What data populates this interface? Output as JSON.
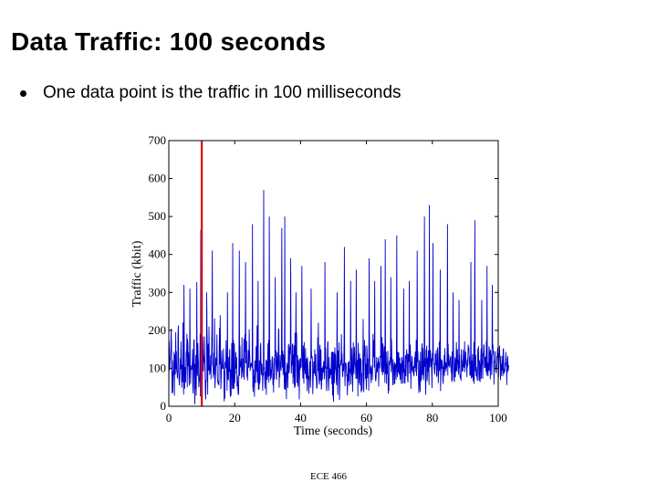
{
  "slide": {
    "title": "Data Traffic: 100 seconds",
    "bullet": "One data point is the traffic in 100 milliseconds",
    "footer": "ECE 466"
  },
  "chart_data": {
    "type": "line",
    "xlabel": "Time (seconds)",
    "ylabel": "Traffic (kbit)",
    "xlim": [
      0,
      100
    ],
    "ylim": [
      0,
      700
    ],
    "xticks": [
      0,
      20,
      40,
      60,
      80,
      100
    ],
    "yticks": [
      0,
      100,
      200,
      300,
      400,
      500,
      600,
      700
    ],
    "grid": false,
    "series": [
      {
        "color": "#0000cc",
        "x_start": 0,
        "x_step": 0.1,
        "values": [
          32,
          171,
          134,
          95,
          123,
          121,
          152,
          204,
          171,
          107,
          34,
          121,
          36,
          74,
          89,
          94,
          144,
          28,
          137,
          97,
          84,
          195,
          98,
          145,
          92,
          92,
          73,
          87,
          193,
          213,
          108,
          70,
          55,
          73,
          102,
          126,
          98,
          171,
          128,
          49,
          109,
          66,
          64,
          221,
          81,
          31,
          111,
          168,
          46,
          92,
          103,
          63,
          103,
          144,
          141,
          191,
          50,
          177,
          160,
          105,
          142,
          92,
          54,
          116,
          135,
          110,
          59,
          96,
          100,
          108,
          97,
          113,
          151,
          51,
          34,
          110,
          174,
          176,
          58,
          5,
          111,
          45,
          135,
          28,
          85,
          327,
          101,
          80,
          167,
          134,
          112,
          50,
          63,
          69,
          88,
          190,
          26,
          87,
          27,
          66,
          153,
          115,
          69,
          184,
          139,
          92,
          131,
          116,
          184,
          129,
          93,
          33,
          18,
          69,
          65,
          73,
          202,
          155,
          31,
          148,
          165,
          94,
          210,
          114,
          83,
          92,
          104,
          134,
          71,
          130,
          157,
          218,
          157,
          107,
          141,
          75,
          104,
          83,
          137,
          231,
          48,
          65,
          87,
          128,
          108,
          109,
          189,
          109,
          67,
          64,
          58,
          67,
          55,
          145,
          207,
          110,
          60,
          126,
          45,
          69,
          109,
          147,
          112,
          99,
          99,
          107,
          152,
          91,
          13,
          93,
          20,
          117,
          100,
          105,
          174,
          118,
          88,
          41,
          110,
          81,
          73,
          68,
          130,
          91,
          125,
          151,
          44,
          25,
          97,
          28,
          93,
          167,
          104,
          46,
          99,
          45,
          175,
          79,
          47,
          166,
          61,
          85,
          87,
          143,
          130,
          99,
          129,
          52,
          81,
          68,
          39,
          30,
          34,
          132,
          102,
          80,
          160,
          102,
          115,
          106,
          125,
          73,
          182,
          90,
          106,
          77,
          126,
          114,
          178,
          70,
          103,
          190,
          145,
          70,
          113,
          129,
          172,
          78,
          82,
          68,
          107,
          148,
          112,
          101,
          203,
          147,
          125,
          93,
          103,
          110,
          115,
          105,
          107,
          100,
          144,
          53,
          38,
          98,
          52,
          80,
          25,
          121,
          104,
          61,
          107,
          158,
          113,
          91,
          213,
          62,
          68,
          120,
          44,
          72,
          44,
          121,
          59,
          70,
          158,
          167,
          114,
          82,
          113,
          109,
          94,
          41,
          88,
          80,
          140,
          100,
          101,
          78,
          46,
          91,
          79,
          123,
          30,
          120,
          77,
          70,
          125,
          166,
          78,
          175,
          62,
          34,
          177,
          80,
          123,
          69,
          97,
          74,
          93,
          119,
          132,
          104,
          56,
          86,
          36,
          128,
          71,
          104,
          115,
          125,
          130,
          148,
          76,
          70,
          120,
          142,
          105,
          91,
          109,
          205,
          200,
          49,
          96,
          76,
          135,
          107,
          102,
          94,
          146,
          57,
          126,
          102,
          146,
          82,
          137,
          125,
          88,
          45,
          160,
          44,
          54,
          90,
          81,
          19,
          115,
          81,
          109,
          48,
          81,
          159,
          164,
          87,
          93,
          157,
          137,
          166,
          68,
          154,
          86,
          117,
          108,
          162,
          165,
          59,
          136,
          76,
          161,
          62,
          48,
          194,
          52,
          107,
          151,
          131,
          194,
          61,
          88,
          134,
          52,
          90,
          123,
          103,
          18,
          83,
          125,
          97,
          127,
          106,
          102,
          160,
          31,
          148,
          103,
          73,
          160,
          88,
          60,
          169,
          96,
          100,
          85,
          153,
          93,
          73,
          126,
          95,
          40,
          129,
          108,
          71,
          80,
          33,
          63,
          90,
          119,
          108,
          49,
          86,
          69,
          149,
          126,
          132,
          121,
          32,
          66,
          87,
          118,
          88,
          86,
          150,
          107,
          79,
          137,
          80,
          72,
          48,
          48,
          93,
          182,
          93,
          137,
          107,
          65,
          57,
          148,
          162,
          67,
          111,
          150,
          44,
          53,
          101,
          70,
          98,
          106,
          89,
          119,
          113,
          71,
          83,
          36,
          99,
          154,
          98,
          68,
          40,
          102,
          101,
          168,
          171,
          64,
          41,
          83,
          130,
          72,
          100,
          75,
          98,
          83,
          101,
          142,
          58,
          144,
          29,
          144,
          30,
          12,
          142,
          105,
          61,
          155,
          97,
          138,
          96,
          81,
          56,
          135,
          44,
          66,
          30,
          147,
          104,
          103,
          168,
          17,
          52,
          109,
          107,
          122,
          108,
          190,
          114,
          139,
          87,
          77,
          113,
          92,
          97,
          167,
          153,
          89,
          53,
          112,
          114,
          113,
          102,
          79,
          84,
          29,
          62,
          116,
          92,
          65,
          119,
          54,
          99,
          87,
          106,
          161,
          58,
          133,
          82,
          154,
          89,
          38,
          87,
          169,
          131,
          85,
          112,
          157,
          115,
          111,
          103,
          72,
          94,
          129,
          73,
          79,
          123,
          26,
          167,
          132,
          92,
          61,
          139,
          55,
          127,
          120,
          126,
          37,
          43,
          88,
          42,
          121,
          123,
          144,
          75,
          37,
          113,
          175,
          132,
          159,
          72,
          112,
          67,
          44,
          160,
          145,
          74,
          127,
          86,
          98,
          41,
          108,
          182,
          114,
          86,
          103,
          79,
          61,
          108,
          84,
          99,
          69,
          124,
          191,
          153,
          129,
          174,
          102,
          99,
          111,
          79,
          66,
          71,
          91,
          130,
          93,
          90,
          114,
          111,
          128,
          52,
          106,
          117,
          100,
          132,
          128,
          132,
          96,
          107,
          90,
          182,
          118,
          82,
          166,
          135,
          89,
          110,
          158,
          127,
          62,
          122,
          84,
          107,
          144,
          59,
          114,
          85,
          118,
          146,
          33,
          75,
          41,
          119,
          115,
          109,
          130,
          118,
          151,
          90,
          177,
          132,
          112,
          90,
          55,
          124,
          102,
          102,
          58,
          116,
          59,
          111,
          90,
          112,
          70,
          103,
          186,
          143,
          77,
          144,
          129,
          88,
          142,
          99,
          82,
          128,
          70,
          79,
          113,
          74,
          59,
          130,
          125,
          110,
          60,
          120,
          89,
          94,
          111,
          61,
          98,
          60,
          129,
          135,
          79,
          116,
          150,
          126,
          139,
          71,
          63,
          135,
          138,
          117,
          113,
          86,
          147,
          162,
          128,
          46,
          116,
          91,
          132,
          124,
          95,
          98,
          86,
          106,
          79,
          90,
          130,
          101,
          140,
          144,
          91,
          175,
          80,
          110,
          85,
          116,
          145,
          113,
          66,
          35,
          54,
          121,
          108,
          38,
          143,
          66,
          69,
          74,
          155,
          166,
          82,
          153,
          119,
          69,
          85,
          138,
          98,
          104,
          127,
          66,
          30,
          150,
          113,
          160,
          66,
          79,
          128,
          91,
          147,
          89,
          56,
          113,
          102,
          125,
          148,
          130,
          104,
          126,
          87,
          48,
          140,
          120,
          56,
          122,
          111,
          113,
          98,
          83,
          95,
          139,
          136,
          108,
          148,
          78,
          81,
          112,
          155,
          134,
          61,
          87,
          95,
          170,
          94,
          178,
          97,
          40,
          82,
          124,
          111,
          99,
          121,
          106,
          69,
          59,
          105,
          88,
          135,
          80,
          153,
          101,
          98,
          116,
          91,
          113,
          102,
          152,
          79,
          81,
          164,
          106,
          136,
          114,
          108,
          102,
          121,
          129,
          132,
          88,
          102,
          64,
          144,
          68,
          113,
          92,
          156,
          106,
          75,
          64,
          103,
          129,
          77,
          124,
          91,
          169,
          112,
          92,
          150,
          113,
          122,
          97,
          83,
          53,
          101,
          136,
          77,
          75,
          82,
          67,
          150,
          123,
          120,
          91,
          109,
          92,
          149,
          117,
          104,
          102,
          171,
          90,
          131,
          144,
          120,
          110,
          108,
          77,
          124,
          104,
          138,
          162,
          152,
          153,
          110,
          131,
          80,
          91,
          82,
          131,
          73,
          92,
          121,
          76,
          137,
          83,
          66,
          100,
          169,
          59,
          111,
          62,
          137,
          91,
          135,
          80,
          104,
          82,
          72,
          67,
          152,
          119,
          159,
          89,
          67,
          121,
          107,
          64,
          93,
          127,
          152,
          72,
          127,
          108,
          122,
          73,
          140,
          130,
          163,
          159,
          102,
          103,
          130,
          102,
          131,
          91,
          172,
          81,
          146,
          87,
          115,
          79,
          114,
          94,
          158,
          149,
          93,
          145,
          71,
          149,
          115,
          136,
          82,
          112,
          77,
          152,
          163,
          134,
          146,
          57,
          118,
          117,
          114,
          145,
          92,
          110,
          86,
          101,
          132,
          128,
          150,
          155,
          110,
          75,
          138,
          131,
          160,
          123,
          109,
          69,
          133,
          80,
          102,
          112,
          94,
          133,
          79,
          150,
          152,
          85,
          90,
          99,
          91,
          115,
          107,
          143,
          122,
          128,
          56,
          116,
          89,
          133,
          93,
          100,
          108
        ],
        "spikes": [
          {
            "x": 4.6,
            "y": 320
          },
          {
            "x": 6.4,
            "y": 310
          },
          {
            "x": 9.7,
            "y": 465
          },
          {
            "x": 11.5,
            "y": 300
          },
          {
            "x": 13.2,
            "y": 410
          },
          {
            "x": 15.6,
            "y": 240
          },
          {
            "x": 17.8,
            "y": 300
          },
          {
            "x": 19.4,
            "y": 430
          },
          {
            "x": 21.4,
            "y": 410
          },
          {
            "x": 23.3,
            "y": 380
          },
          {
            "x": 25.4,
            "y": 480
          },
          {
            "x": 27.1,
            "y": 330
          },
          {
            "x": 28.8,
            "y": 570
          },
          {
            "x": 30.5,
            "y": 500
          },
          {
            "x": 32.3,
            "y": 340
          },
          {
            "x": 34.3,
            "y": 470
          },
          {
            "x": 35.2,
            "y": 500
          },
          {
            "x": 37.0,
            "y": 390
          },
          {
            "x": 38.6,
            "y": 300
          },
          {
            "x": 40.4,
            "y": 370
          },
          {
            "x": 43.2,
            "y": 310
          },
          {
            "x": 45.4,
            "y": 220
          },
          {
            "x": 47.4,
            "y": 380
          },
          {
            "x": 51.1,
            "y": 300
          },
          {
            "x": 53.3,
            "y": 420
          },
          {
            "x": 55.2,
            "y": 330
          },
          {
            "x": 56.9,
            "y": 360
          },
          {
            "x": 59.0,
            "y": 230
          },
          {
            "x": 60.8,
            "y": 390
          },
          {
            "x": 62.5,
            "y": 330
          },
          {
            "x": 64.4,
            "y": 370
          },
          {
            "x": 65.7,
            "y": 440
          },
          {
            "x": 67.4,
            "y": 340
          },
          {
            "x": 69.2,
            "y": 450
          },
          {
            "x": 71.3,
            "y": 310
          },
          {
            "x": 73.0,
            "y": 330
          },
          {
            "x": 75.4,
            "y": 410
          },
          {
            "x": 77.6,
            "y": 500
          },
          {
            "x": 79.1,
            "y": 530
          },
          {
            "x": 80.2,
            "y": 430
          },
          {
            "x": 82.4,
            "y": 360
          },
          {
            "x": 84.6,
            "y": 480
          },
          {
            "x": 86.3,
            "y": 300
          },
          {
            "x": 88.1,
            "y": 280
          },
          {
            "x": 91.7,
            "y": 380
          },
          {
            "x": 92.9,
            "y": 490
          },
          {
            "x": 95.0,
            "y": 280
          },
          {
            "x": 96.6,
            "y": 370
          },
          {
            "x": 98.2,
            "y": 320
          }
        ]
      }
    ],
    "markers": [
      {
        "type": "vline",
        "x": 10,
        "color": "#dd0000"
      }
    ]
  }
}
